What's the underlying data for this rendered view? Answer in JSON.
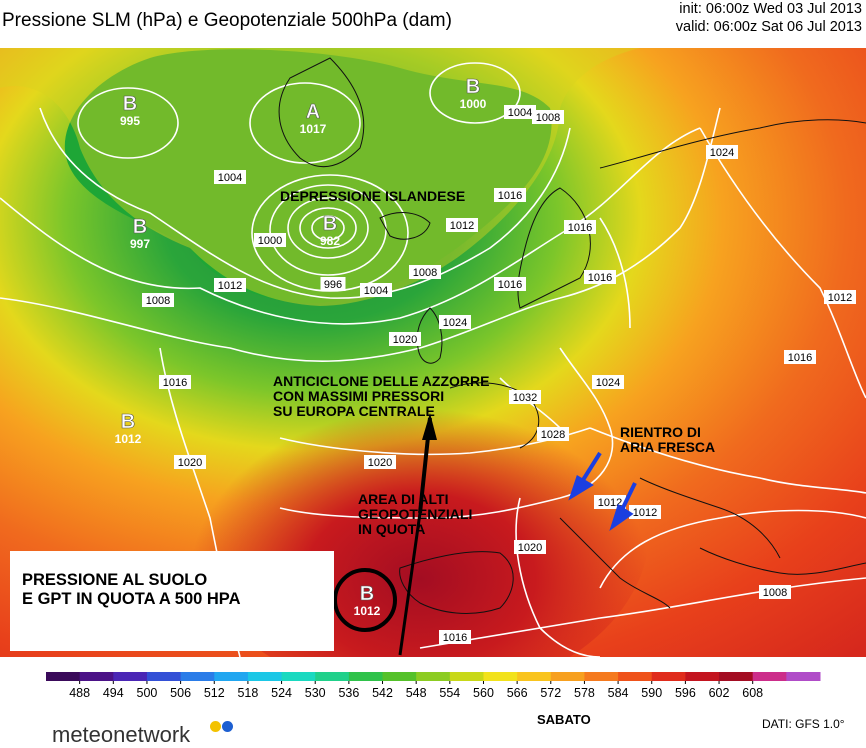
{
  "header": {
    "title": "Pressione SLM (hPa) e Geopotenziale 500hPa (dam)",
    "init": "init: 06:00z Wed 03 Jul 2013",
    "valid": "valid: 06:00z Sat 06 Jul 2013"
  },
  "pressure_centers": [
    {
      "letter": "B",
      "value": "995"
    },
    {
      "letter": "A",
      "value": "1017"
    },
    {
      "letter": "B",
      "value": "1000"
    },
    {
      "letter": "B",
      "value": "997"
    },
    {
      "letter": "B",
      "value": "982"
    },
    {
      "letter": "B",
      "value": "1012"
    },
    {
      "letter": "B",
      "value": "1012"
    }
  ],
  "isobar_labels": [
    "1004",
    "1008",
    "1004",
    "1000",
    "996",
    "1004",
    "1008",
    "1012",
    "1016",
    "1008",
    "1012",
    "1016",
    "1020",
    "1024",
    "1020",
    "1024",
    "1028",
    "1032",
    "1024",
    "1020",
    "1016",
    "1016",
    "1012",
    "1008",
    "1016",
    "1012",
    "1012",
    "1020",
    "1016",
    "1016"
  ],
  "annotations": {
    "depressione": "DEPRESSIONE ISLANDESE",
    "anticiclone": "ANTICICLONE DELLE AZZORRE\nCON MASSIMI PRESSORI\nSU EUROPA CENTRALE",
    "area": "AREA DI ALTI\nGEOPOTENZIALI\nIN QUOTA",
    "rientro": "RIENTRO DI\nARIA FRESCA",
    "box": "PRESSIONE AL SUOLO\nE GPT IN QUOTA A 500 HPA"
  },
  "colorbar": {
    "ticks": [
      "488",
      "494",
      "500",
      "506",
      "512",
      "518",
      "524",
      "530",
      "536",
      "542",
      "548",
      "554",
      "560",
      "566",
      "572",
      "578",
      "584",
      "590",
      "596",
      "602",
      "608"
    ],
    "colors": [
      "#3a0a5a",
      "#4b1287",
      "#4a26b5",
      "#3350d6",
      "#2a7ce8",
      "#21a6f0",
      "#1bc7e6",
      "#1ad9c0",
      "#20d08a",
      "#2fc24a",
      "#55c12a",
      "#8ccc22",
      "#c8d818",
      "#f2e21c",
      "#f9c41e",
      "#f7a01f",
      "#f57a1e",
      "#ef521a",
      "#e02c1c",
      "#c3141f",
      "#a30c22",
      "#cc2d8a",
      "#b04cc8"
    ]
  },
  "footer": {
    "day": "SABATO",
    "dati": "DATI: GFS 1.0°",
    "logo": "meteonetwork"
  },
  "colors": {
    "low": "#1ca330",
    "high": "#c8101f",
    "contour": "#ffffff"
  }
}
